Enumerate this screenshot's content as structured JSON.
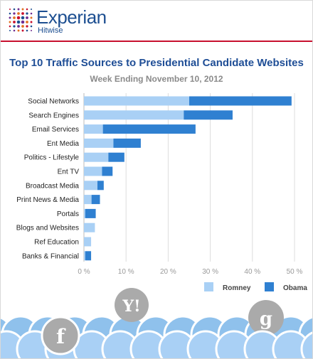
{
  "brand": {
    "name": "Experian",
    "sub": "Hitwise"
  },
  "colors": {
    "romney": "#a9d0f5",
    "obama": "#2f80d1",
    "brand_blue": "#1d4f91",
    "rule": "#c8102e",
    "grid": "#dddddd"
  },
  "icons": [
    "yahoo-icon",
    "facebook-icon",
    "google-icon"
  ],
  "chart_data": {
    "type": "bar",
    "orientation": "horizontal",
    "stacked": true,
    "title": "Top 10 Traffic Sources to Presidential Candidate Websites",
    "subtitle": "Week Ending November 10, 2012",
    "categories": [
      "Social Networks",
      "Search Engines",
      "Email Services",
      "Ent Media",
      "Politics - Lifestyle",
      "Ent TV",
      "Broadcast Media",
      "Print News & Media",
      "Portals",
      "Blogs and Websites",
      "Ref Education",
      "Banks & Financial"
    ],
    "series": [
      {
        "name": "Romney",
        "values": [
          25.0,
          23.7,
          4.5,
          7.0,
          5.8,
          4.3,
          3.2,
          1.8,
          0.3,
          2.6,
          1.7,
          0.3
        ]
      },
      {
        "name": "Obama",
        "values": [
          24.3,
          11.6,
          22.0,
          6.5,
          3.8,
          2.5,
          1.5,
          2.0,
          2.5,
          0.0,
          0.0,
          1.4
        ]
      }
    ],
    "xlim": [
      0,
      50
    ],
    "xticks": [
      0,
      10,
      20,
      30,
      40,
      50
    ],
    "xtick_labels": [
      "0 %",
      "10 %",
      "20 %",
      "30 %",
      "40 %",
      "50 %"
    ],
    "grid": true,
    "legend": "bottom-right"
  }
}
